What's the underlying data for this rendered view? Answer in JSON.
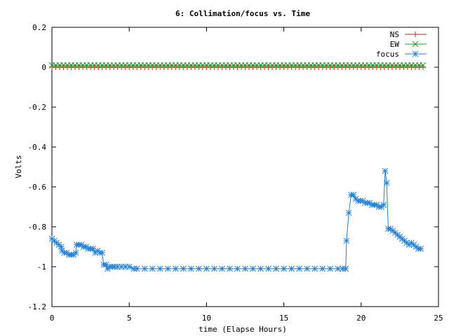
{
  "chart_data": {
    "type": "line",
    "title": "6: Collimation/focus vs. Time",
    "xlabel": "time (Elapse Hours)",
    "ylabel": "Volts",
    "xlim": [
      0,
      25
    ],
    "ylim": [
      -1.2,
      0.2
    ],
    "x_ticks": [
      "0",
      "5",
      "10",
      "15",
      "20",
      "25"
    ],
    "y_ticks": [
      "0.2",
      "0",
      "-0.2",
      "-0.4",
      "-0.6",
      "-0.8",
      "-1",
      "-1.2"
    ],
    "grid": false,
    "legend_position": "top-right",
    "series": [
      {
        "name": "NS",
        "color": "#d21f1f",
        "marker": "plus",
        "x_start": 0.0,
        "x_end": 24.0,
        "x_step": 0.25,
        "constant_y": 0.0
      },
      {
        "name": "EW",
        "color": "#1f9c1f",
        "marker": "x",
        "x_start": 0.0,
        "x_end": 24.0,
        "x_step": 0.25,
        "constant_y": 0.01
      },
      {
        "name": "focus",
        "color": "#1f7fd6",
        "marker": "star",
        "points": [
          [
            0.0,
            -0.86
          ],
          [
            0.15,
            -0.87
          ],
          [
            0.3,
            -0.88
          ],
          [
            0.45,
            -0.89
          ],
          [
            0.6,
            -0.9
          ],
          [
            0.65,
            -0.92
          ],
          [
            0.8,
            -0.93
          ],
          [
            0.95,
            -0.93
          ],
          [
            1.1,
            -0.94
          ],
          [
            1.25,
            -0.94
          ],
          [
            1.4,
            -0.94
          ],
          [
            1.55,
            -0.93
          ],
          [
            1.6,
            -0.89
          ],
          [
            1.75,
            -0.89
          ],
          [
            1.9,
            -0.89
          ],
          [
            2.05,
            -0.9
          ],
          [
            2.2,
            -0.9
          ],
          [
            2.35,
            -0.91
          ],
          [
            2.5,
            -0.91
          ],
          [
            2.65,
            -0.91
          ],
          [
            2.8,
            -0.93
          ],
          [
            2.95,
            -0.92
          ],
          [
            3.1,
            -0.93
          ],
          [
            3.25,
            -0.93
          ],
          [
            3.35,
            -0.99
          ],
          [
            3.5,
            -0.99
          ],
          [
            3.6,
            -1.01
          ],
          [
            3.75,
            -1.0
          ],
          [
            3.9,
            -1.0
          ],
          [
            4.05,
            -1.0
          ],
          [
            4.25,
            -1.0
          ],
          [
            4.5,
            -1.0
          ],
          [
            4.75,
            -1.0
          ],
          [
            5.0,
            -1.0
          ],
          [
            5.3,
            -1.01
          ],
          [
            5.5,
            -1.01
          ],
          [
            6.0,
            -1.01
          ],
          [
            6.5,
            -1.01
          ],
          [
            7.0,
            -1.01
          ],
          [
            7.5,
            -1.01
          ],
          [
            8.0,
            -1.01
          ],
          [
            8.5,
            -1.01
          ],
          [
            9.0,
            -1.01
          ],
          [
            9.5,
            -1.01
          ],
          [
            10.0,
            -1.01
          ],
          [
            10.5,
            -1.01
          ],
          [
            11.0,
            -1.01
          ],
          [
            11.5,
            -1.01
          ],
          [
            12.0,
            -1.01
          ],
          [
            12.5,
            -1.01
          ],
          [
            13.0,
            -1.01
          ],
          [
            13.5,
            -1.01
          ],
          [
            14.0,
            -1.01
          ],
          [
            14.5,
            -1.01
          ],
          [
            15.0,
            -1.01
          ],
          [
            15.5,
            -1.01
          ],
          [
            16.0,
            -1.01
          ],
          [
            16.5,
            -1.01
          ],
          [
            17.0,
            -1.01
          ],
          [
            17.5,
            -1.01
          ],
          [
            18.0,
            -1.01
          ],
          [
            18.5,
            -1.01
          ],
          [
            18.8,
            -1.01
          ],
          [
            19.0,
            -1.01
          ],
          [
            19.05,
            -0.87
          ],
          [
            19.2,
            -0.73
          ],
          [
            19.35,
            -0.64
          ],
          [
            19.5,
            -0.64
          ],
          [
            19.65,
            -0.66
          ],
          [
            19.8,
            -0.67
          ],
          [
            19.95,
            -0.67
          ],
          [
            20.1,
            -0.67
          ],
          [
            20.25,
            -0.68
          ],
          [
            20.4,
            -0.68
          ],
          [
            20.55,
            -0.68
          ],
          [
            20.7,
            -0.69
          ],
          [
            20.85,
            -0.69
          ],
          [
            21.0,
            -0.69
          ],
          [
            21.15,
            -0.7
          ],
          [
            21.3,
            -0.7
          ],
          [
            21.45,
            -0.69
          ],
          [
            21.55,
            -0.52
          ],
          [
            21.65,
            -0.58
          ],
          [
            21.75,
            -0.81
          ],
          [
            21.9,
            -0.81
          ],
          [
            22.05,
            -0.82
          ],
          [
            22.2,
            -0.83
          ],
          [
            22.35,
            -0.84
          ],
          [
            22.5,
            -0.85
          ],
          [
            22.65,
            -0.86
          ],
          [
            22.8,
            -0.87
          ],
          [
            22.95,
            -0.88
          ],
          [
            23.1,
            -0.89
          ],
          [
            23.25,
            -0.88
          ],
          [
            23.4,
            -0.89
          ],
          [
            23.55,
            -0.9
          ],
          [
            23.7,
            -0.91
          ],
          [
            23.85,
            -0.91
          ]
        ]
      }
    ]
  }
}
